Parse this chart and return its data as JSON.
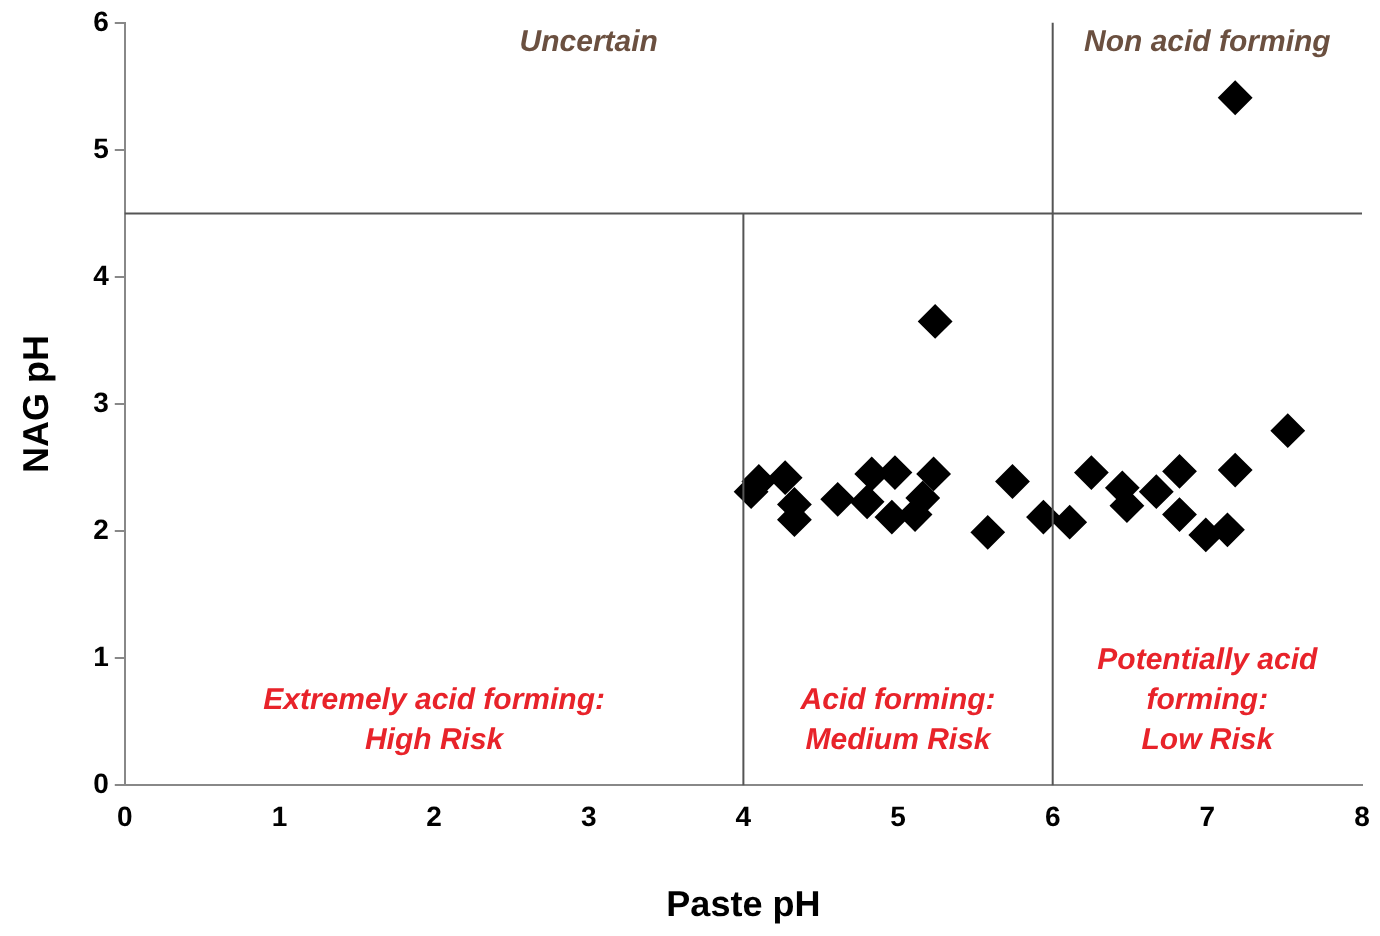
{
  "chart_data": {
    "type": "scatter",
    "xlabel": "Paste pH",
    "ylabel": "NAG pH",
    "x": [
      4.05,
      4.1,
      4.27,
      4.33,
      4.33,
      4.61,
      4.8,
      4.83,
      4.98,
      4.96,
      5.11,
      5.16,
      5.23,
      5.24,
      5.58,
      5.74,
      5.94,
      6.11,
      6.25,
      6.45,
      6.48,
      6.67,
      6.82,
      6.82,
      6.99,
      7.13,
      7.18,
      7.52,
      7.18
    ],
    "series": [
      {
        "color": "#000000",
        "values": [
          2.31,
          2.39,
          2.42,
          2.21,
          2.09,
          2.25,
          2.23,
          2.45,
          2.46,
          2.11,
          2.13,
          2.26,
          2.45,
          3.65,
          1.99,
          2.39,
          2.11,
          2.07,
          2.46,
          2.34,
          2.2,
          2.31,
          2.47,
          2.13,
          1.97,
          2.01,
          2.48,
          2.79,
          5.41
        ]
      }
    ],
    "marker": "diamond",
    "xlim": [
      0,
      8
    ],
    "ylim": [
      0,
      6
    ],
    "xticks": [
      0,
      1,
      2,
      3,
      4,
      5,
      6,
      7,
      8
    ],
    "yticks": [
      0,
      1,
      2,
      3,
      4,
      5,
      6
    ],
    "grid": false,
    "legend": false,
    "ref_lines": [
      {
        "axis": "y",
        "value": 4.5
      },
      {
        "axis": "x",
        "value": 4
      },
      {
        "axis": "x",
        "value": 6
      }
    ],
    "annotations": [
      "Uncertain",
      "Non acid forming",
      "Extremely acid forming:\nHigh Risk",
      "Acid forming:\nMedium Risk",
      "Potentially acid\nforming:\nLow Risk"
    ]
  }
}
